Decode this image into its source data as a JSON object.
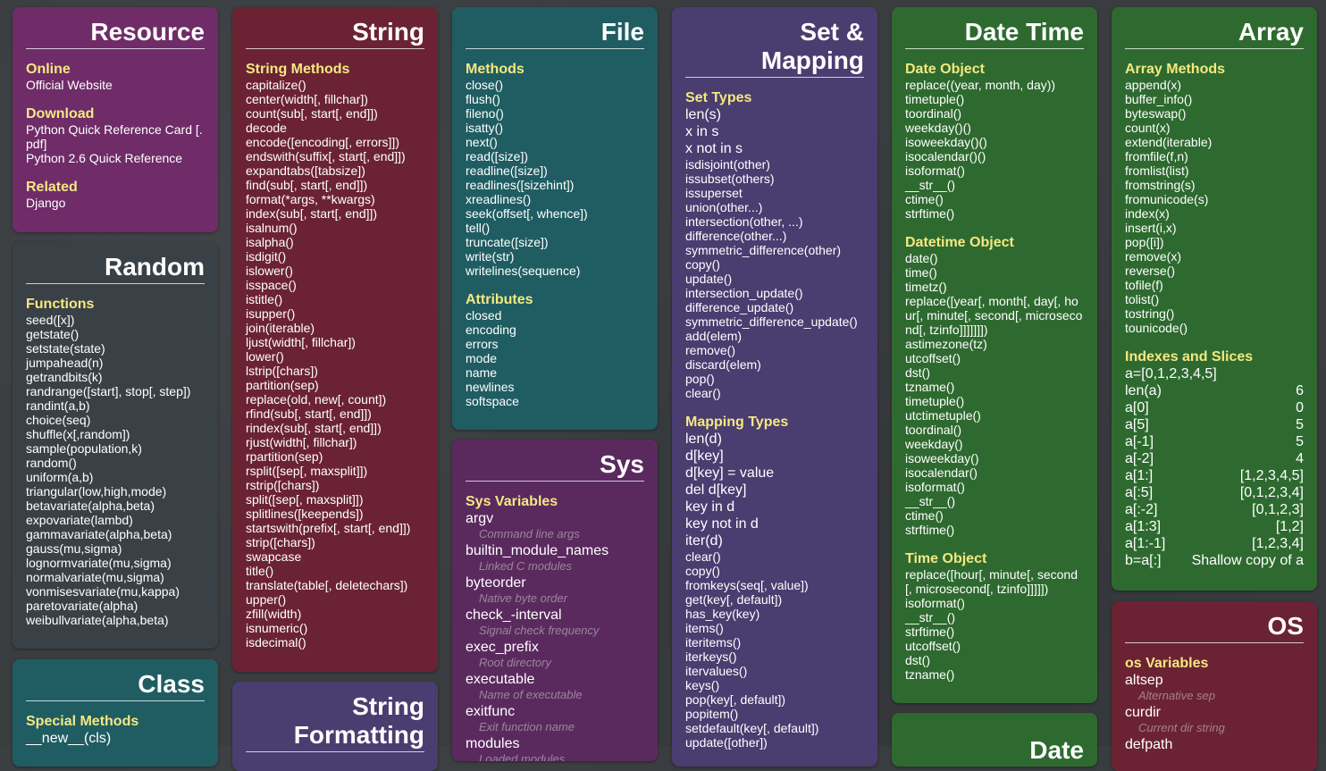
{
  "resource": {
    "title": "Resource",
    "online": {
      "heading": "Online",
      "items": [
        "Official Website"
      ]
    },
    "download": {
      "heading": "Download",
      "items": [
        "Python Quick Reference Card [. pdf]",
        "Python 2.6 Quick Reference"
      ]
    },
    "related": {
      "heading": "Related",
      "items": [
        "Django"
      ]
    }
  },
  "random": {
    "title": "Random",
    "heading": "Functions",
    "items": [
      "seed([x])",
      "getstate()",
      "setstate(state)",
      "jumpahead(n)",
      "getrandbits(k)",
      "randrange([start], stop[, step])",
      "randint(a,b)",
      "choice(seq)",
      "shuffle(x[,random])",
      "sample(population,k)",
      "random()",
      "uniform(a,b)",
      "triangular(low,high,mode)",
      "betavariate(alpha,beta)",
      "expovariate(lambd)",
      "gammavariate(alpha,beta)",
      "gauss(mu,sigma)",
      "lognormvariate(mu,sigma)",
      "normalvariate(mu,sigma)",
      "vonmisesvariate(mu,kappa)",
      "paretovariate(alpha)",
      "weibullvariate(alpha,beta)"
    ]
  },
  "class": {
    "title": "Class",
    "heading": "Special Methods",
    "items": [
      "__new__(cls)"
    ]
  },
  "string": {
    "title": "String",
    "heading": "String Methods",
    "items": [
      "capitalize()",
      "center(width[, fillchar])",
      "count(sub[, start[, end]])",
      "decode",
      "encode([encoding[, errors]])",
      "endswith(suffix[, start[, end]])",
      "expandtabs([tabsize])",
      "find(sub[, start[, end]])",
      "format(*args, **kwargs)",
      "index(sub[, start[, end]])",
      "isalnum()",
      "isalpha()",
      "isdigit()",
      "islower()",
      "isspace()",
      "istitle()",
      "isupper()",
      "join(iterable)",
      "ljust(width[, fillchar])",
      "lower()",
      "lstrip([chars])",
      "partition(sep)",
      "replace(old, new[, count])",
      "rfind(sub[, start[, end]])",
      "rindex(sub[, start[, end]])",
      "rjust(width[, fillchar])",
      "rpartition(sep)",
      "rsplit([sep[, maxsplit]])",
      "rstrip([chars])",
      "split([sep[, maxsplit]])",
      "splitlines([keepends])",
      "startswith(prefix[, start[, end]])",
      "strip([chars])",
      "swapcase",
      "title()",
      "translate(table[, deletechars])",
      "upper()",
      "zfill(width)",
      "isnumeric()",
      "isdecimal()"
    ]
  },
  "string_formatting": {
    "title": "String Formatting"
  },
  "file": {
    "title": "File",
    "methods": {
      "heading": "Methods",
      "items": [
        "close()",
        "flush()",
        "fileno()",
        "isatty()",
        "next()",
        "read([size])",
        "readline([size])",
        "readlines([sizehint])",
        "xreadlines()",
        "seek(offset[, whence])",
        "tell()",
        "truncate([size])",
        "write(str)",
        "writelines(sequence)"
      ]
    },
    "attributes": {
      "heading": "Attributes",
      "items": [
        "closed",
        "encoding",
        "errors",
        "mode",
        "name",
        "newlines",
        "softspace"
      ]
    }
  },
  "sys": {
    "title": "Sys",
    "heading": "Sys Variables",
    "vars": [
      {
        "name": "argv",
        "desc": "Command line args"
      },
      {
        "name": "builtin_module_names",
        "desc": "Linked C modules"
      },
      {
        "name": "byteorder",
        "desc": "Native byte order"
      },
      {
        "name": "check_-interval",
        "desc": "Signal check frequency"
      },
      {
        "name": "exec_prefix",
        "desc": "Root directory"
      },
      {
        "name": "executable",
        "desc": "Name of executable"
      },
      {
        "name": "exitfunc",
        "desc": "Exit function name"
      },
      {
        "name": "modules",
        "desc": "Loaded modules"
      }
    ]
  },
  "set_mapping": {
    "title": "Set & Mapping",
    "set_types": {
      "heading": "Set Types",
      "big": [
        "len(s)",
        "x in s",
        "x not in s"
      ],
      "items": [
        "isdisjoint(other)",
        "issubset(others)",
        "issuperset",
        "union(other...)",
        "intersection(other, ...)",
        "difference(other...)",
        "symmetric_difference(other)",
        "copy()",
        "update()",
        "intersection_update()",
        "difference_update()",
        "symmetric_difference_update()",
        "add(elem)",
        "remove()",
        "discard(elem)",
        "pop()",
        "clear()"
      ]
    },
    "mapping_types": {
      "heading": "Mapping Types",
      "big": [
        "len(d)",
        "d[key]",
        "d[key] = value",
        "del d[key]",
        "key in d",
        "key not in d",
        "iter(d)"
      ],
      "items": [
        "clear()",
        "copy()",
        "fromkeys(seq[, value])",
        "get(key[, default])",
        "has_key(key)",
        "items()",
        "iteritems()",
        "iterkeys()",
        "itervalues()",
        "keys()",
        "pop(key[, default])",
        "popitem()",
        "setdefault(key[, default])",
        "update([other])"
      ]
    }
  },
  "date_time": {
    "title": "Date Time",
    "date_object": {
      "heading": "Date Object",
      "items": [
        "replace((year, month, day))",
        "timetuple()",
        "toordinal()",
        "weekday()()",
        "isoweekday()()",
        "isocalendar()()",
        "isoformat()",
        "__str__()",
        "ctime()",
        "strftime()"
      ]
    },
    "datetime_object": {
      "heading": "Datetime Object",
      "items": [
        "date()",
        "time()",
        "timetz()",
        "replace([year[, month[, day[, hour[, minute[, second[, microsecond[, tzinfo]]]]]]])",
        "astimezone(tz)",
        "utcoffset()",
        "dst()",
        "tzname()",
        "timetuple()",
        "utctimetuple()",
        "toordinal()",
        "weekday()",
        "isoweekday()",
        "isocalendar()",
        "isoformat()",
        "__str__()",
        "ctime()",
        "strftime()"
      ]
    },
    "time_object": {
      "heading": "Time Object",
      "items": [
        "replace([hour[, minute[, second[, microsecond[, tzinfo]]]]])",
        "isoformat()",
        "__str__()",
        "strftime()",
        "utcoffset()",
        "dst()",
        "tzname()"
      ]
    }
  },
  "date": {
    "title": "Date"
  },
  "array": {
    "title": "Array",
    "methods": {
      "heading": "Array Methods",
      "items": [
        "append(x)",
        "buffer_info()",
        "byteswap()",
        "count(x)",
        "extend(iterable)",
        "fromfile(f,n)",
        "fromlist(list)",
        "fromstring(s)",
        "fromunicode(s)",
        "index(x)",
        "insert(i,x)",
        "pop([i])",
        "remove(x)",
        "reverse()",
        "tofile(f)",
        "tolist()",
        "tostring()",
        "tounicode()"
      ]
    },
    "slices": {
      "heading": "Indexes and Slices",
      "intro": "a=[0,1,2,3,4,5]",
      "rows": [
        {
          "k": "len(a)",
          "v": "6"
        },
        {
          "k": "a[0]",
          "v": "0"
        },
        {
          "k": "a[5]",
          "v": "5"
        },
        {
          "k": "a[-1]",
          "v": "5"
        },
        {
          "k": "a[-2]",
          "v": "4"
        },
        {
          "k": "a[1:]",
          "v": "[1,2,3,4,5]"
        },
        {
          "k": "a[:5]",
          "v": "[0,1,2,3,4]"
        },
        {
          "k": "a[:-2]",
          "v": "[0,1,2,3]"
        },
        {
          "k": "a[1:3]",
          "v": "[1,2]"
        },
        {
          "k": "a[1:-1]",
          "v": "[1,2,3,4]"
        },
        {
          "k": "b=a[:]",
          "v": "Shallow copy of a"
        }
      ]
    }
  },
  "os": {
    "title": "OS",
    "heading": "os Variables",
    "vars": [
      {
        "name": "altsep",
        "desc": "Alternative sep"
      },
      {
        "name": "curdir",
        "desc": "Current dir string"
      },
      {
        "name": "defpath",
        "desc": ""
      }
    ]
  }
}
